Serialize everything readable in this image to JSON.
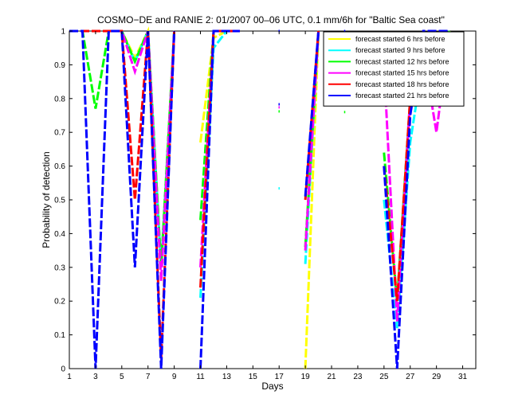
{
  "chart_data": {
    "type": "line",
    "title": "COSMO−DE and RANIE 2: 01/2007 00–06 UTC, 0.1 mm/6h for \"Baltic Sea coast\"",
    "xlabel": "Days",
    "ylabel": "Probability of detection",
    "xlim": [
      1,
      32
    ],
    "ylim": [
      0,
      1
    ],
    "xticks": [
      1,
      3,
      5,
      7,
      9,
      11,
      13,
      15,
      17,
      19,
      21,
      23,
      25,
      27,
      29,
      31
    ],
    "xticklabels": [
      "1",
      "3",
      "5",
      "7",
      "9",
      "11",
      "13",
      "15",
      "17",
      "19",
      "21",
      "23",
      "25",
      "27",
      "29",
      "31"
    ],
    "yticks": [
      0,
      0.1,
      0.2,
      0.3,
      0.4,
      0.5,
      0.6,
      0.7,
      0.8,
      0.9,
      1
    ],
    "yticklabels": [
      "0",
      "0.1",
      "0.2",
      "0.3",
      "0.4",
      "0.5",
      "0.6",
      "0.7",
      "0.8",
      "0.9",
      "1"
    ],
    "grid": false,
    "legend_position": "top-right",
    "series": [
      {
        "name": "forecast started 6 hrs before",
        "color": "#ffff00",
        "points": [
          [
            1,
            1
          ],
          [
            2,
            1
          ],
          [
            3,
            1
          ],
          [
            4,
            1
          ],
          [
            5,
            1
          ],
          [
            6,
            0.92
          ],
          [
            7,
            1
          ],
          [
            8,
            0.3
          ],
          [
            9,
            1
          ],
          null,
          [
            11,
            0.67
          ],
          [
            12,
            0.98
          ],
          [
            13,
            1
          ],
          [
            14,
            1
          ],
          null,
          [
            19,
            0
          ],
          [
            20,
            1
          ],
          null,
          [
            25,
            0.97
          ],
          [
            26,
            0.96
          ],
          [
            27,
            0.8
          ],
          [
            28,
            0.92
          ],
          [
            29,
            0.78
          ],
          [
            30,
            1
          ]
        ]
      },
      {
        "name": "forecast started 9 hrs before",
        "color": "#00ffff",
        "points": [
          [
            1,
            1
          ],
          [
            2,
            1
          ],
          [
            3,
            1
          ],
          [
            4,
            1
          ],
          [
            5,
            1
          ],
          [
            6,
            0.91
          ],
          [
            7,
            1
          ],
          [
            8,
            0.3
          ],
          [
            9,
            1
          ],
          null,
          [
            11,
            0.21
          ],
          [
            12,
            0.95
          ],
          [
            13,
            1
          ],
          [
            14,
            1
          ],
          null,
          [
            19,
            0.31
          ],
          [
            20,
            1
          ],
          null,
          [
            25,
            0.5
          ],
          [
            26,
            0.12
          ],
          [
            27,
            0.67
          ],
          [
            28,
            0.92
          ],
          [
            29,
            0.93
          ],
          [
            30,
            1
          ]
        ]
      },
      {
        "name": "forecast started 12 hrs before",
        "color": "#00ff00",
        "points": [
          [
            1,
            1
          ],
          [
            2,
            1
          ],
          [
            3,
            0.77
          ],
          [
            4,
            1
          ],
          [
            5,
            1
          ],
          [
            6,
            0.91
          ],
          [
            7,
            1
          ],
          [
            8,
            0.3
          ],
          [
            9,
            1
          ],
          null,
          [
            11,
            0.44
          ],
          [
            12,
            1
          ],
          [
            13,
            1
          ],
          [
            14,
            1
          ],
          null,
          [
            19,
            0.36
          ],
          [
            20,
            1
          ],
          null,
          [
            25,
            0.64
          ],
          [
            26,
            0.2
          ],
          [
            27,
            0.8
          ],
          [
            28,
            0.95
          ],
          [
            29,
            0.86
          ],
          [
            30,
            1
          ]
        ]
      },
      {
        "name": "forecast started 15 hrs before",
        "color": "#ff00ff",
        "points": [
          [
            1,
            1
          ],
          [
            2,
            1
          ],
          [
            3,
            1
          ],
          [
            4,
            1
          ],
          [
            5,
            1
          ],
          [
            6,
            0.88
          ],
          [
            7,
            1
          ],
          [
            8,
            0.26
          ],
          [
            9,
            1
          ],
          null,
          [
            11,
            0.3
          ],
          [
            12,
            1
          ],
          [
            13,
            1
          ],
          [
            14,
            1
          ],
          null,
          [
            19,
            0.35
          ],
          [
            20,
            1
          ],
          null,
          [
            25,
            0.9
          ],
          [
            26,
            0.14
          ],
          [
            27,
            0.8
          ],
          [
            28,
            0.94
          ],
          [
            29,
            0.7
          ],
          [
            30,
            1
          ]
        ]
      },
      {
        "name": "forecast started 18 hrs before",
        "color": "#ff0000",
        "points": [
          [
            1,
            1
          ],
          [
            2,
            1
          ],
          [
            3,
            1
          ],
          [
            4,
            1
          ],
          [
            5,
            1
          ],
          [
            6,
            0.5
          ],
          [
            7,
            1
          ],
          [
            8,
            0.03
          ],
          [
            9,
            1
          ],
          null,
          [
            11,
            0.24
          ],
          [
            12,
            1
          ],
          [
            13,
            1
          ],
          [
            14,
            1
          ],
          null,
          [
            19,
            0.5
          ],
          [
            20,
            1
          ],
          null,
          [
            25,
            0.6
          ],
          [
            26,
            0.2
          ],
          [
            27,
            0.8
          ],
          [
            28,
            0.97
          ],
          [
            29,
            0.95
          ],
          [
            30,
            1
          ]
        ]
      },
      {
        "name": "forecast started 21 hrs before",
        "color": "#0000ff",
        "points": [
          [
            1,
            1
          ],
          [
            2,
            1
          ],
          [
            3,
            0
          ],
          [
            4,
            1
          ],
          [
            5,
            1
          ],
          [
            6,
            0.3
          ],
          [
            7,
            1
          ],
          [
            8,
            0
          ],
          [
            9,
            1
          ],
          null,
          [
            11,
            0
          ],
          [
            12,
            1
          ],
          [
            13,
            1
          ],
          [
            14,
            1
          ],
          null,
          [
            19,
            0.51
          ],
          [
            20,
            1
          ],
          null,
          [
            25,
            0.6
          ],
          [
            26,
            0
          ],
          [
            27,
            0.75
          ],
          [
            28,
            1
          ],
          [
            29,
            1
          ],
          [
            30,
            1
          ]
        ]
      }
    ],
    "isolated_points": [
      {
        "x": 17,
        "y": 1,
        "color": "#0000ff"
      },
      {
        "x": 17,
        "y": 0.783,
        "color": "#0000ff"
      },
      {
        "x": 17,
        "y": 0.774,
        "color": "#ff00ff"
      },
      {
        "x": 17,
        "y": 0.762,
        "color": "#00ff00"
      },
      {
        "x": 17,
        "y": 0.534,
        "color": "#00ffff"
      },
      {
        "x": 22,
        "y": 1,
        "color": "#0000ff"
      },
      {
        "x": 22,
        "y": 0.985,
        "color": "#0000ff"
      },
      {
        "x": 22,
        "y": 0.76,
        "color": "#00ff00"
      }
    ]
  }
}
